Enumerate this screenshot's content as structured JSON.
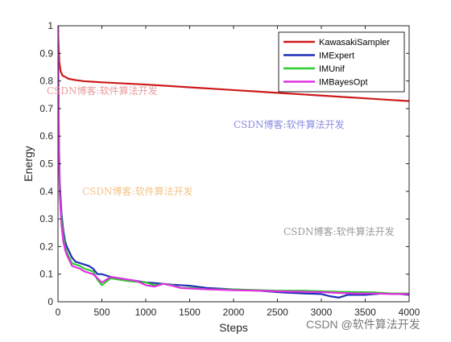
{
  "chart_data": {
    "type": "line",
    "title": "",
    "xlabel": "Steps",
    "ylabel": "Energy",
    "xlim": [
      0,
      4000
    ],
    "ylim": [
      0,
      1
    ],
    "xticks": [
      0,
      500,
      1000,
      1500,
      2000,
      2500,
      3000,
      3500,
      4000
    ],
    "yticks": [
      0,
      0.1,
      0.2,
      0.3,
      0.4,
      0.5,
      0.6,
      0.7,
      0.8,
      0.9,
      1
    ],
    "xtick_labels": [
      "0",
      "500",
      "1000",
      "1500",
      "2000",
      "2500",
      "3000",
      "3500",
      "4000"
    ],
    "ytick_labels": [
      "0",
      "0.1",
      "0.2",
      "0.3",
      "0.4",
      "0.5",
      "0.6",
      "0.7",
      "0.8",
      "0.9",
      "1"
    ],
    "grid": false,
    "legend_position": "top-right",
    "series": [
      {
        "name": "KawasakiSampler",
        "color": "#cc1a1a",
        "x": [
          0,
          5,
          15,
          30,
          50,
          80,
          120,
          200,
          300,
          400,
          500,
          750,
          1000,
          1250,
          1500,
          1750,
          2000,
          2250,
          2500,
          2750,
          3000,
          3250,
          3500,
          3750,
          4000
        ],
        "y": [
          1.0,
          0.95,
          0.87,
          0.835,
          0.82,
          0.815,
          0.808,
          0.803,
          0.799,
          0.797,
          0.795,
          0.791,
          0.787,
          0.782,
          0.777,
          0.772,
          0.767,
          0.762,
          0.757,
          0.752,
          0.747,
          0.742,
          0.737,
          0.732,
          0.727
        ]
      },
      {
        "name": "IMExpert",
        "color": "#1f2fb5",
        "x": [
          0,
          10,
          20,
          40,
          60,
          80,
          100,
          130,
          160,
          200,
          250,
          300,
          350,
          400,
          450,
          500,
          600,
          700,
          800,
          900,
          1000,
          1100,
          1200,
          1300,
          1400,
          1500,
          1700,
          2000,
          2300,
          2500,
          2600,
          2800,
          3000,
          3100,
          3200,
          3300,
          3500,
          3700,
          3900,
          4000
        ],
        "y": [
          1.0,
          0.6,
          0.43,
          0.32,
          0.26,
          0.22,
          0.2,
          0.18,
          0.16,
          0.145,
          0.14,
          0.135,
          0.13,
          0.12,
          0.1,
          0.1,
          0.09,
          0.085,
          0.08,
          0.075,
          0.07,
          0.068,
          0.065,
          0.062,
          0.06,
          0.058,
          0.05,
          0.045,
          0.04,
          0.035,
          0.033,
          0.03,
          0.028,
          0.02,
          0.015,
          0.025,
          0.025,
          0.03,
          0.028,
          0.025
        ]
      },
      {
        "name": "IMUnif",
        "color": "#2ecc2e",
        "x": [
          0,
          10,
          20,
          40,
          60,
          80,
          100,
          130,
          160,
          200,
          250,
          300,
          350,
          400,
          450,
          500,
          600,
          700,
          800,
          900,
          1000,
          1100,
          1200,
          1300,
          1400,
          1500,
          1700,
          2000,
          2300,
          2500,
          2800,
          3000,
          3200,
          3400,
          3600,
          3800,
          4000
        ],
        "y": [
          1.0,
          0.58,
          0.4,
          0.3,
          0.24,
          0.2,
          0.18,
          0.16,
          0.14,
          0.135,
          0.13,
          0.12,
          0.115,
          0.11,
          0.08,
          0.06,
          0.085,
          0.08,
          0.075,
          0.072,
          0.07,
          0.06,
          0.065,
          0.06,
          0.05,
          0.05,
          0.045,
          0.045,
          0.042,
          0.04,
          0.04,
          0.038,
          0.036,
          0.035,
          0.034,
          0.03,
          0.03
        ]
      },
      {
        "name": "IMBayesOpt",
        "color": "#e02ee0",
        "x": [
          0,
          10,
          20,
          40,
          60,
          80,
          100,
          130,
          160,
          200,
          250,
          300,
          350,
          400,
          450,
          500,
          600,
          700,
          800,
          900,
          1000,
          1100,
          1200,
          1300,
          1400,
          1500,
          1700,
          2000,
          2300,
          2500,
          2800,
          3000,
          3200,
          3400,
          3600,
          3800,
          4000
        ],
        "y": [
          1.0,
          0.57,
          0.39,
          0.28,
          0.22,
          0.19,
          0.17,
          0.15,
          0.13,
          0.125,
          0.12,
          0.11,
          0.105,
          0.1,
          0.085,
          0.07,
          0.09,
          0.085,
          0.08,
          0.075,
          0.06,
          0.055,
          0.065,
          0.058,
          0.05,
          0.048,
          0.045,
          0.042,
          0.04,
          0.038,
          0.036,
          0.035,
          0.032,
          0.03,
          0.03,
          0.028,
          0.028
        ]
      }
    ]
  },
  "watermarks": {
    "w1": "CSDN博客:软件算法开发",
    "w2": "CSDN博客:软件算法开发",
    "w3": "CSDN博客:软件算法开发",
    "w4": "CSDN博客:软件算法开发",
    "w5": "CSDN @软件算法开发"
  },
  "colors": {
    "w1": "#e89c9c",
    "w2": "#8c8ce0",
    "w3": "#f2c48a",
    "w4": "#9a9a9a",
    "w5": "#7a7a7a"
  }
}
